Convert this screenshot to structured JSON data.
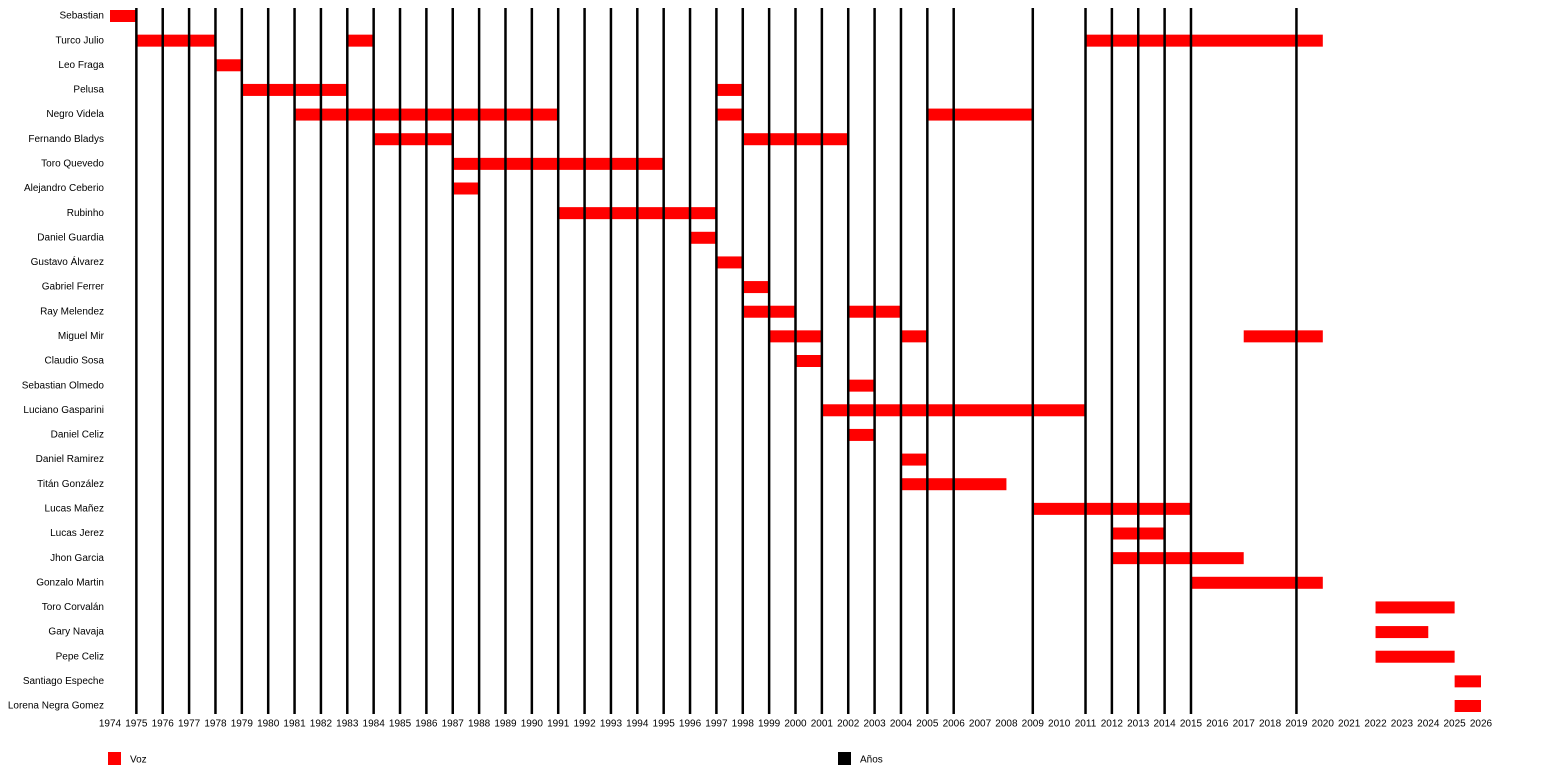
{
  "chart_data": {
    "type": "timeline",
    "xlim": [
      1974,
      2026
    ],
    "xticks": [
      1974,
      1975,
      1976,
      1977,
      1978,
      1979,
      1980,
      1981,
      1982,
      1983,
      1984,
      1985,
      1986,
      1987,
      1988,
      1989,
      1990,
      1991,
      1992,
      1993,
      1994,
      1995,
      1996,
      1997,
      1998,
      1999,
      2000,
      2001,
      2002,
      2003,
      2004,
      2005,
      2006,
      2007,
      2008,
      2009,
      2010,
      2011,
      2012,
      2013,
      2014,
      2015,
      2016,
      2017,
      2018,
      2019,
      2020,
      2021,
      2022,
      2023,
      2024,
      2025,
      2026
    ],
    "year_lines": [
      1975,
      1976,
      1977,
      1978,
      1979,
      1980,
      1981,
      1982,
      1983,
      1984,
      1985,
      1986,
      1987,
      1988,
      1989,
      1990,
      1991,
      1992,
      1993,
      1994,
      1995,
      1996,
      1997,
      1998,
      1999,
      2000,
      2001,
      2002,
      2003,
      2004,
      2005,
      2006,
      2009,
      2011,
      2012,
      2013,
      2014,
      2015,
      2019
    ],
    "legend": [
      {
        "name": "Voz",
        "color": "#ff0000"
      },
      {
        "name": "Años",
        "color": "#000000"
      }
    ],
    "rows": [
      {
        "name": "Sebastian",
        "periods": [
          [
            1974,
            1975
          ]
        ]
      },
      {
        "name": "Turco Julio",
        "periods": [
          [
            1975,
            1978
          ],
          [
            1983,
            1984
          ],
          [
            2011,
            2020
          ]
        ]
      },
      {
        "name": "Leo Fraga",
        "periods": [
          [
            1978,
            1979
          ]
        ]
      },
      {
        "name": "Pelusa",
        "periods": [
          [
            1979,
            1983
          ],
          [
            1997,
            1998
          ]
        ]
      },
      {
        "name": "Negro Videla",
        "periods": [
          [
            1981,
            1991
          ],
          [
            1997,
            1998
          ],
          [
            2005,
            2009
          ]
        ]
      },
      {
        "name": "Fernando Bladys",
        "periods": [
          [
            1984,
            1987
          ],
          [
            1998,
            2002
          ]
        ]
      },
      {
        "name": "Toro Quevedo",
        "periods": [
          [
            1987,
            1995
          ]
        ]
      },
      {
        "name": "Alejandro Ceberio",
        "periods": [
          [
            1987,
            1988
          ]
        ]
      },
      {
        "name": "Rubinho",
        "periods": [
          [
            1991,
            1997
          ]
        ]
      },
      {
        "name": "Daniel Guardia",
        "periods": [
          [
            1996,
            1997
          ]
        ]
      },
      {
        "name": "Gustavo Álvarez",
        "periods": [
          [
            1997,
            1998
          ]
        ]
      },
      {
        "name": "Gabriel Ferrer",
        "periods": [
          [
            1998,
            1999
          ]
        ]
      },
      {
        "name": "Ray Melendez",
        "periods": [
          [
            1998,
            2000
          ],
          [
            2002,
            2004
          ]
        ]
      },
      {
        "name": "Miguel Mir",
        "periods": [
          [
            1999,
            2001
          ],
          [
            2004,
            2005
          ],
          [
            2017,
            2020
          ]
        ]
      },
      {
        "name": "Claudio Sosa",
        "periods": [
          [
            2000,
            2001
          ]
        ]
      },
      {
        "name": "Sebastian Olmedo",
        "periods": [
          [
            2002,
            2003
          ]
        ]
      },
      {
        "name": "Luciano Gasparini",
        "periods": [
          [
            2001,
            2011
          ]
        ]
      },
      {
        "name": "Daniel Celiz",
        "periods": [
          [
            2002,
            2003
          ]
        ]
      },
      {
        "name": "Daniel Ramirez",
        "periods": [
          [
            2004,
            2005
          ]
        ]
      },
      {
        "name": "Titán González",
        "periods": [
          [
            2004,
            2008
          ]
        ]
      },
      {
        "name": "Lucas Mañez",
        "periods": [
          [
            2009,
            2015
          ]
        ]
      },
      {
        "name": "Lucas Jerez",
        "periods": [
          [
            2012,
            2014
          ]
        ]
      },
      {
        "name": "Jhon Garcia",
        "periods": [
          [
            2012,
            2017
          ]
        ]
      },
      {
        "name": "Gonzalo Martin",
        "periods": [
          [
            2015,
            2020
          ]
        ]
      },
      {
        "name": "Toro Corvalán",
        "periods": [
          [
            2022,
            2025
          ]
        ]
      },
      {
        "name": "Gary Navaja",
        "periods": [
          [
            2022,
            2024
          ]
        ]
      },
      {
        "name": "Pepe Celiz",
        "periods": [
          [
            2022,
            2025
          ]
        ]
      },
      {
        "name": "Santiago Espeche",
        "periods": [
          [
            2025,
            2026
          ]
        ]
      },
      {
        "name": "Lorena Negra Gomez",
        "periods": [
          [
            2025,
            2026
          ]
        ]
      }
    ]
  }
}
